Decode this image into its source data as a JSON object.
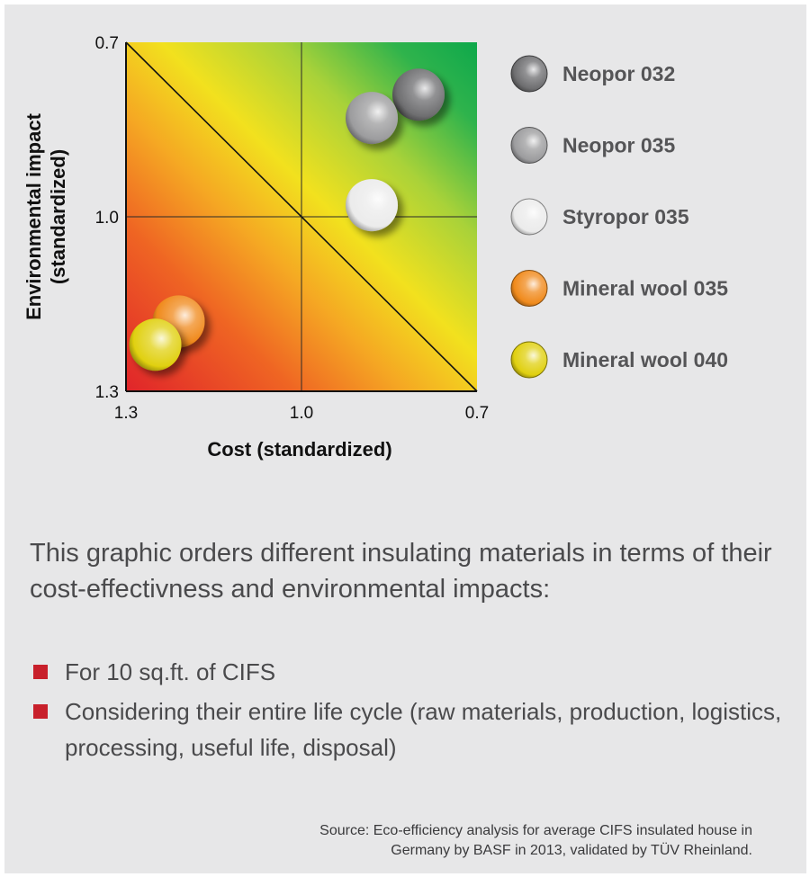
{
  "chart_data": {
    "type": "scatter",
    "xlabel": "Cost (standardized)",
    "ylabel_lines": [
      "Environmental impact",
      "(standardized)"
    ],
    "xlim": [
      1.3,
      0.7
    ],
    "ylim": [
      1.3,
      0.7
    ],
    "x_ticks": [
      "1.3",
      "1.0",
      "0.7"
    ],
    "y_ticks": [
      "0.7",
      "1.0",
      "1.3"
    ],
    "reference_lines": [
      "x = 1.0",
      "y = 1.0",
      "diagonal 1.3,0.7 → 0.7,1.3"
    ],
    "background": "gradient red (bottom-left) → yellow → green (top-right)",
    "series": [
      {
        "name": "Neopor 032",
        "x": 0.8,
        "y": 0.79,
        "color": "#6e6e70"
      },
      {
        "name": "Neopor 035",
        "x": 0.88,
        "y": 0.83,
        "color": "#9c9c9e"
      },
      {
        "name": "Styropor 035",
        "x": 0.88,
        "y": 0.98,
        "color": "#ebebeb"
      },
      {
        "name": "Mineral wool 035",
        "x": 1.21,
        "y": 1.18,
        "color": "#f08a1c"
      },
      {
        "name": "Mineral wool 040",
        "x": 1.25,
        "y": 1.22,
        "color": "#e0d010"
      }
    ],
    "legend_position": "right"
  },
  "description": "This graphic orders different insulating materials in terms of their cost-effectivness and environmental impacts:",
  "bullets": [
    "For 10 sq.ft. of CIFS",
    "Considering their entire life cycle (raw materials, production, logistics, processing, useful life, disposal)"
  ],
  "source_lines": [
    "Source: Eco-efficiency analysis for average CIFS insulated house in",
    "Germany by BASF in 2013, validated by TÜV Rheinland."
  ],
  "colors": {
    "panel_bg": "#e7e7e8",
    "bullet_marker": "#c8202b",
    "text": "#4a4a4c"
  }
}
